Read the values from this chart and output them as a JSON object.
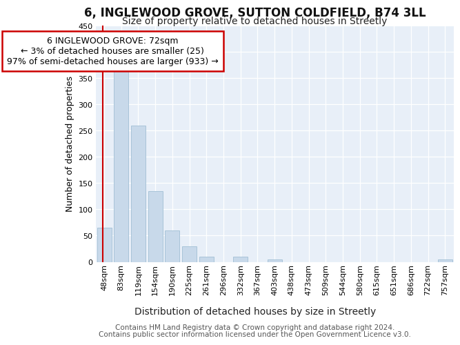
{
  "title1": "6, INGLEWOOD GROVE, SUTTON COLDFIELD, B74 3LL",
  "title2": "Size of property relative to detached houses in Streetly",
  "xlabel": "Distribution of detached houses by size in Streetly",
  "ylabel": "Number of detached properties",
  "bar_labels": [
    "48sqm",
    "83sqm",
    "119sqm",
    "154sqm",
    "190sqm",
    "225sqm",
    "261sqm",
    "296sqm",
    "332sqm",
    "367sqm",
    "403sqm",
    "438sqm",
    "473sqm",
    "509sqm",
    "544sqm",
    "580sqm",
    "615sqm",
    "651sqm",
    "686sqm",
    "722sqm",
    "757sqm"
  ],
  "bar_values": [
    65,
    375,
    260,
    135,
    60,
    30,
    10,
    0,
    10,
    0,
    5,
    0,
    0,
    0,
    0,
    0,
    0,
    0,
    0,
    0,
    4
  ],
  "bar_color": "#c8d9ea",
  "bar_edgecolor": "#a8c4d8",
  "annotation_text": "6 INGLEWOOD GROVE: 72sqm\n← 3% of detached houses are smaller (25)\n97% of semi-detached houses are larger (933) →",
  "annotation_box_facecolor": "#ffffff",
  "annotation_box_edgecolor": "#cc0000",
  "red_line_x": -0.08,
  "ylim": [
    0,
    450
  ],
  "yticks": [
    0,
    50,
    100,
    150,
    200,
    250,
    300,
    350,
    400,
    450
  ],
  "bg_color": "#ffffff",
  "plot_bg_color": "#e8eff8",
  "title1_fontsize": 12,
  "title2_fontsize": 10,
  "xlabel_fontsize": 10,
  "ylabel_fontsize": 9,
  "tick_fontsize": 8,
  "annotation_fontsize": 9,
  "footer_fontsize": 7.5,
  "footer1": "Contains HM Land Registry data © Crown copyright and database right 2024.",
  "footer2": "Contains public sector information licensed under the Open Government Licence v3.0."
}
